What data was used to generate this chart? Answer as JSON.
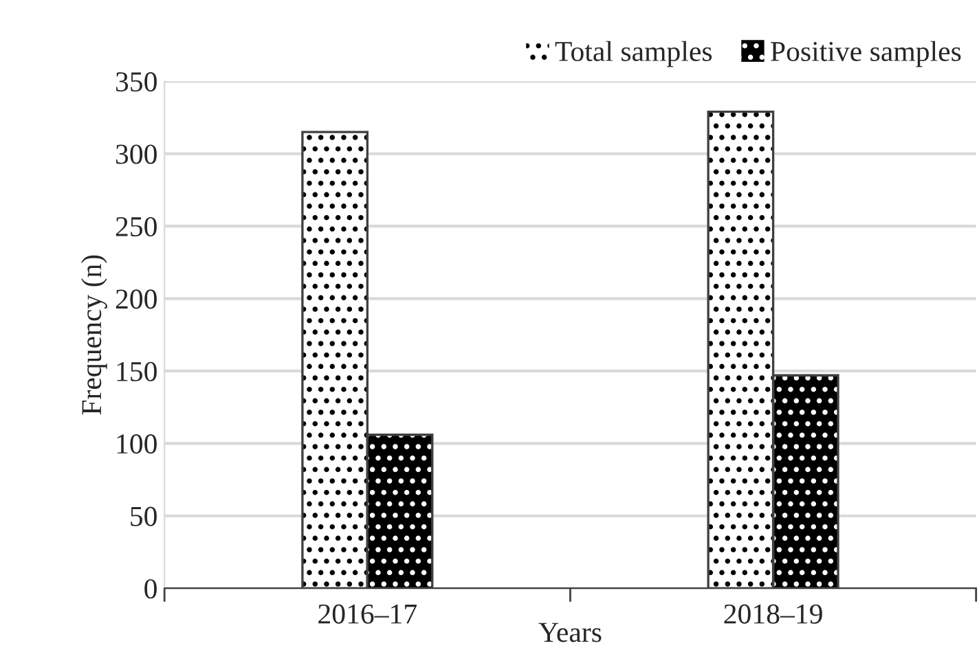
{
  "chart_data": {
    "type": "bar",
    "xlabel": "Years",
    "ylabel": "Frequency (n)",
    "categories": [
      "2016–17",
      "2018–19"
    ],
    "series": [
      {
        "name": "Total samples",
        "color": "#ffffff",
        "values": [
          315,
          329
        ]
      },
      {
        "name": "Positive samples",
        "color": "#000000",
        "values": [
          106,
          147
        ]
      }
    ],
    "ylim": [
      0,
      350
    ],
    "yticks": [
      0,
      50,
      100,
      150,
      200,
      250,
      300,
      350
    ],
    "grid": "y",
    "legend": "top right"
  }
}
